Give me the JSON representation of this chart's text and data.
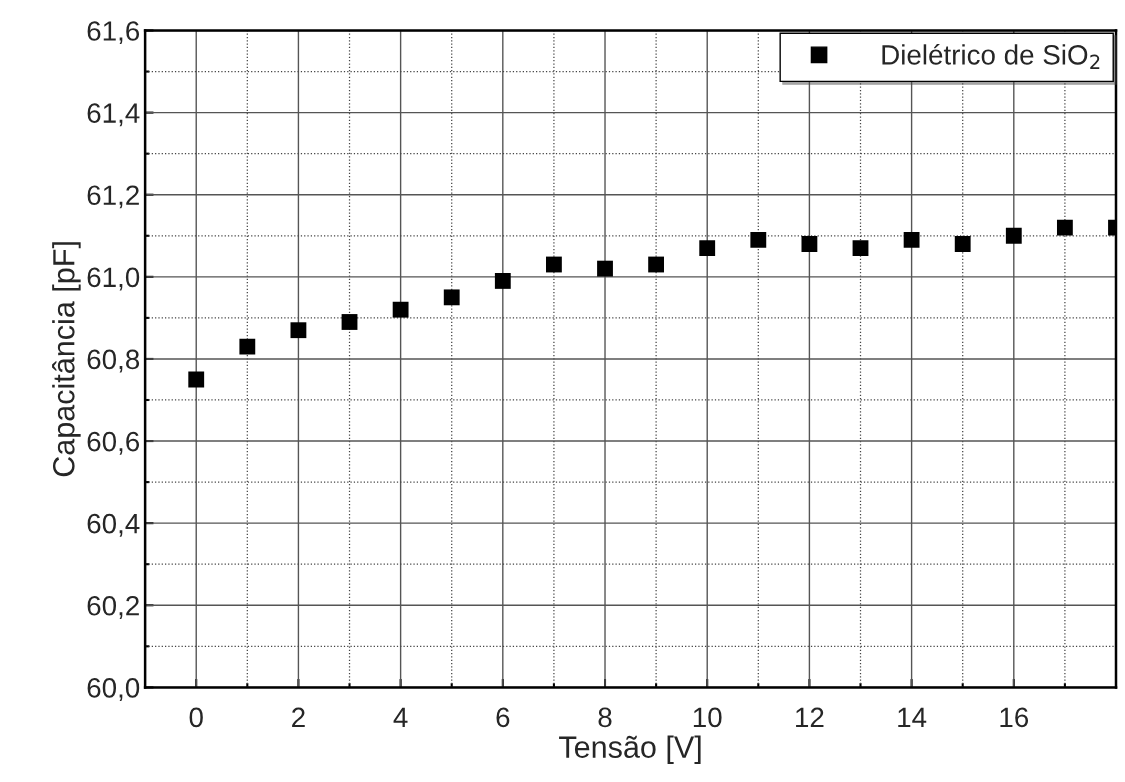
{
  "chart_data": {
    "type": "scatter",
    "xlabel": "Tensão [V]",
    "ylabel": "Capacitância [pF]",
    "x": [
      0,
      1,
      2,
      3,
      4,
      5,
      6,
      7,
      8,
      9,
      10,
      11,
      12,
      13,
      14,
      15,
      16,
      17,
      18
    ],
    "series": [
      {
        "name": "Dielétrico de SiO$_{2}$",
        "color": "#000000",
        "values": [
          60.75,
          60.83,
          60.87,
          60.89,
          60.92,
          60.95,
          60.99,
          61.03,
          61.02,
          61.03,
          61.07,
          61.09,
          61.08,
          61.07,
          61.09,
          61.08,
          61.1,
          61.12,
          61.12
        ]
      }
    ],
    "marker": "square",
    "legend": "top right",
    "grid": true,
    "xlim": [
      -1,
      18
    ],
    "ylim": [
      60.0,
      61.6
    ],
    "xticks": [
      0,
      {
        "value": 1,
        "label": null
      },
      2,
      {
        "value": 3,
        "label": null
      },
      4,
      {
        "value": 5,
        "label": null
      },
      6,
      {
        "value": 7,
        "label": null
      },
      8,
      {
        "value": 9,
        "label": null
      },
      10,
      {
        "value": 11,
        "label": null
      },
      12,
      {
        "value": 13,
        "label": null
      },
      14,
      {
        "value": 15,
        "label": null
      },
      16,
      {
        "value": 17,
        "label": null
      }
    ],
    "yticks": [
      {
        "value": 60.0,
        "label": "60,0"
      },
      {
        "value": 60.1,
        "label": null
      },
      {
        "value": 60.2,
        "label": "60,2"
      },
      {
        "value": 60.3,
        "label": null
      },
      {
        "value": 60.4,
        "label": "60,4"
      },
      {
        "value": 60.5,
        "label": null
      },
      {
        "value": 60.6,
        "label": "60,6"
      },
      {
        "value": 60.7,
        "label": null
      },
      {
        "value": 60.8,
        "label": "60,8"
      },
      {
        "value": 60.9,
        "label": null
      },
      {
        "value": 61.0,
        "label": "61,0"
      },
      {
        "value": 61.1,
        "label": null
      },
      {
        "value": 61.2,
        "label": "61,2"
      },
      {
        "value": 61.3,
        "label": null
      },
      {
        "value": 61.4,
        "label": "61,4"
      },
      {
        "value": 61.5,
        "label": null
      },
      {
        "value": 61.6,
        "label": "61,6"
      }
    ]
  }
}
